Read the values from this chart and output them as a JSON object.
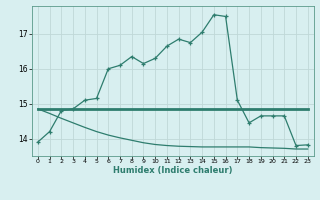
{
  "title": "",
  "xlabel": "Humidex (Indice chaleur)",
  "ylabel": "",
  "bg_color": "#d8eff0",
  "line_color": "#2e7d6e",
  "grid_color": "#b8d8d8",
  "xlim": [
    -0.5,
    23.5
  ],
  "ylim": [
    13.5,
    17.8
  ],
  "yticks": [
    14,
    15,
    16,
    17
  ],
  "xticks": [
    0,
    1,
    2,
    3,
    4,
    5,
    6,
    7,
    8,
    9,
    10,
    11,
    12,
    13,
    14,
    15,
    16,
    17,
    18,
    19,
    20,
    21,
    22,
    23
  ],
  "series1_x": [
    0,
    1,
    2,
    3,
    4,
    5,
    6,
    7,
    8,
    9,
    10,
    11,
    12,
    13,
    14,
    15,
    16,
    17,
    18,
    19,
    20,
    21,
    22,
    23
  ],
  "series1_y": [
    13.9,
    14.2,
    14.8,
    14.85,
    15.1,
    15.15,
    16.0,
    16.1,
    16.35,
    16.15,
    16.3,
    16.65,
    16.85,
    16.75,
    17.05,
    17.55,
    17.5,
    15.1,
    14.45,
    14.65,
    14.65,
    14.65,
    13.8,
    13.82
  ],
  "series2_x": [
    0,
    23
  ],
  "series2_y": [
    14.85,
    14.85
  ],
  "series3_x": [
    0,
    1,
    2,
    3,
    4,
    5,
    6,
    7,
    8,
    9,
    10,
    11,
    12,
    13,
    14,
    15,
    16,
    17,
    18,
    19,
    20,
    21,
    22,
    23
  ],
  "series3_y": [
    14.85,
    14.72,
    14.58,
    14.45,
    14.32,
    14.2,
    14.1,
    14.02,
    13.95,
    13.88,
    13.83,
    13.8,
    13.78,
    13.77,
    13.76,
    13.76,
    13.76,
    13.76,
    13.76,
    13.74,
    13.73,
    13.72,
    13.7,
    13.7
  ]
}
